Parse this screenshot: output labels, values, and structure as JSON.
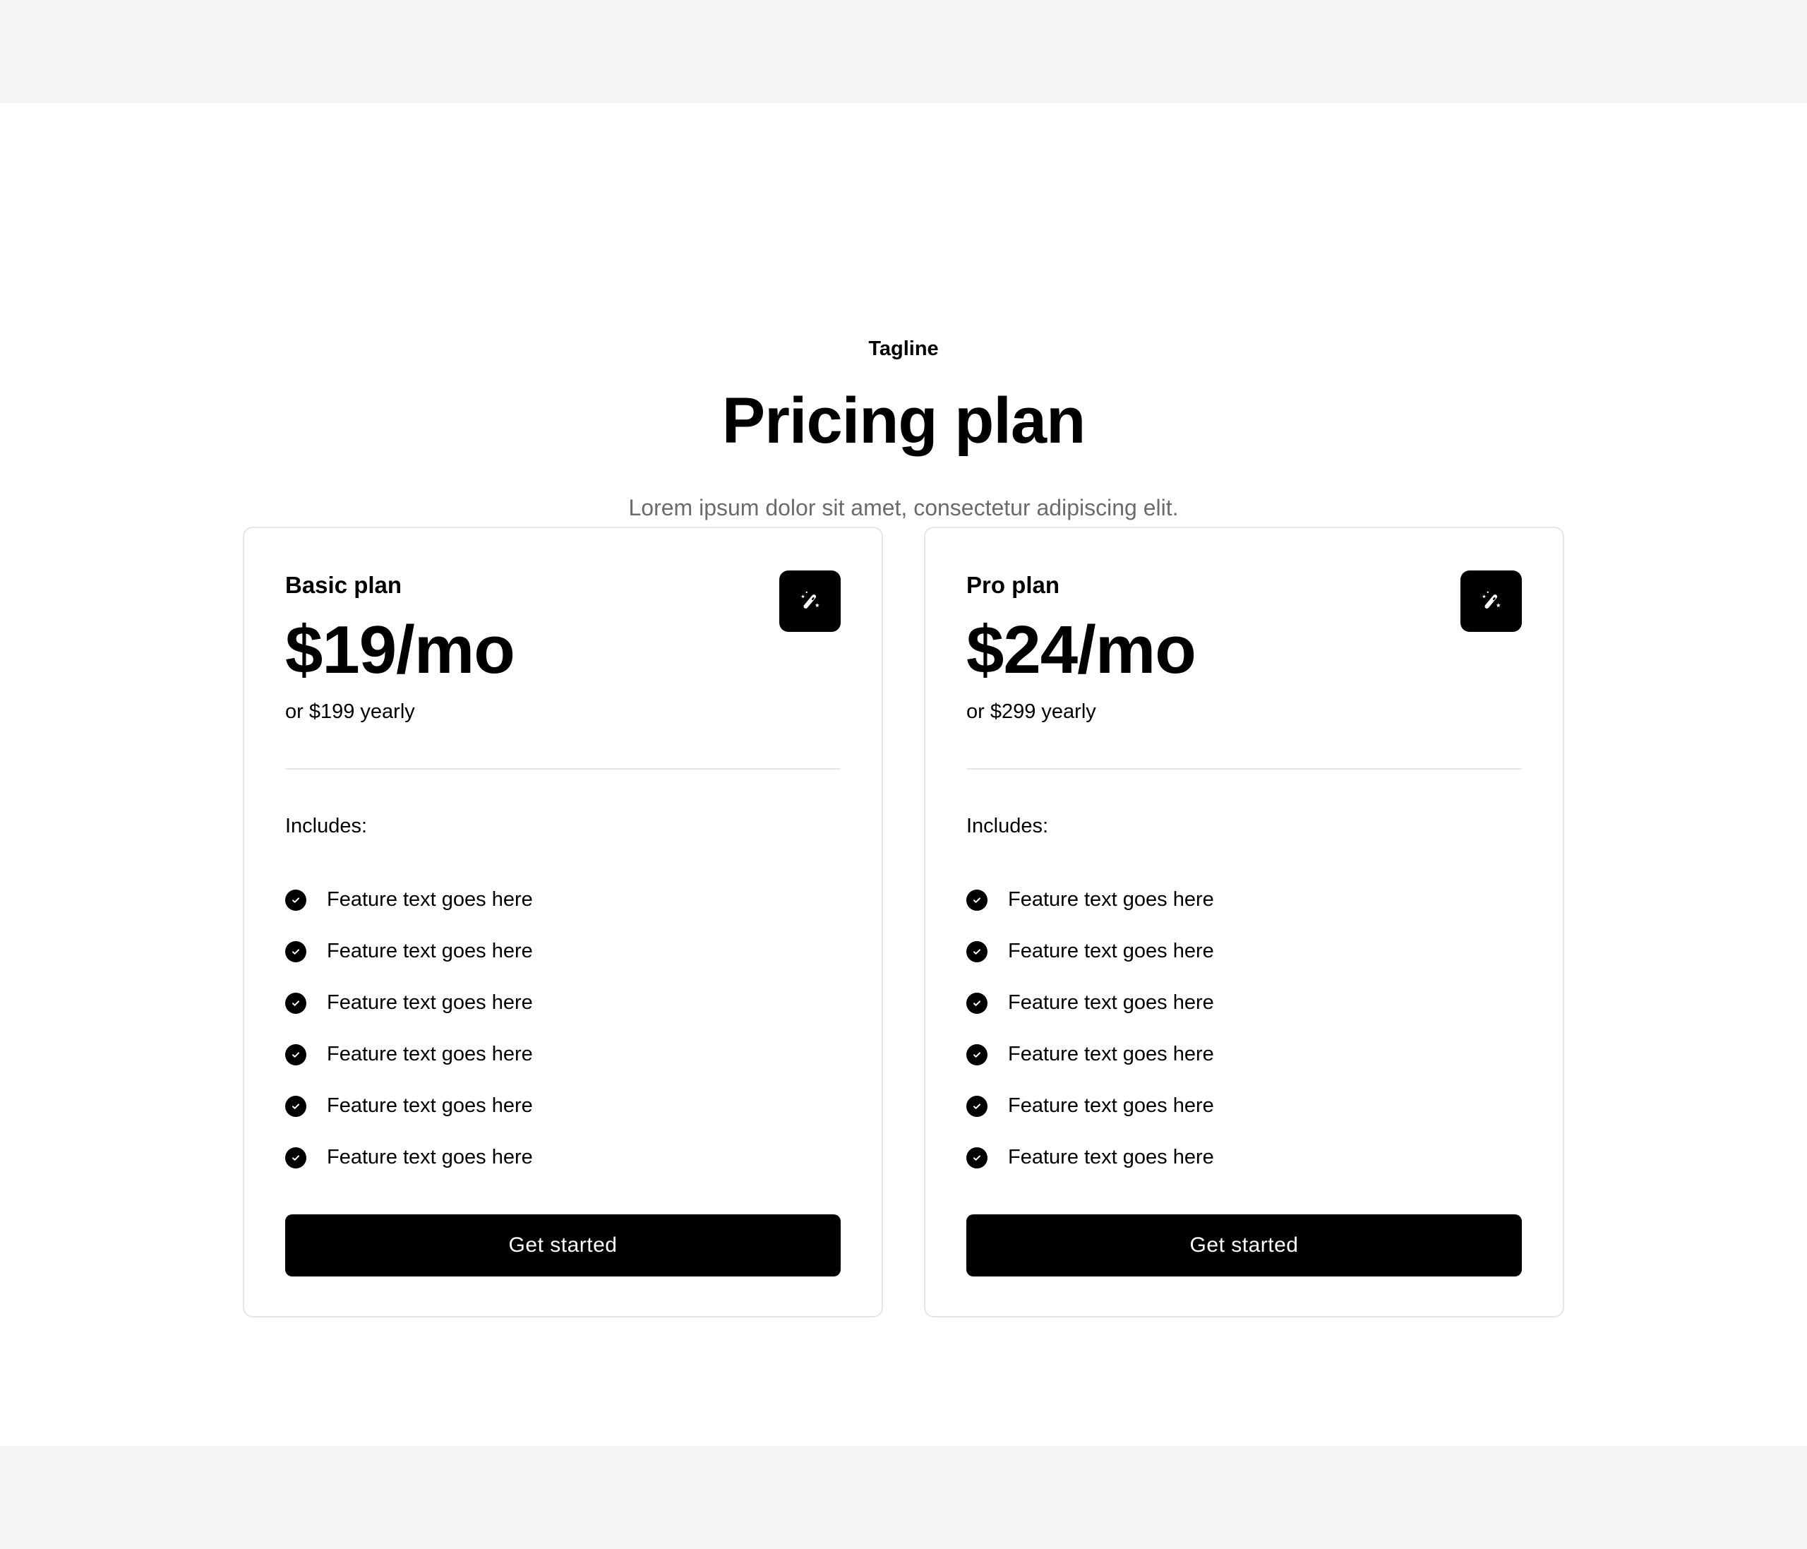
{
  "header": {
    "tagline": "Tagline",
    "title": "Pricing plan",
    "subtitle": "Lorem ipsum dolor sit amet, consectetur adipiscing elit."
  },
  "plans": [
    {
      "name": "Basic plan",
      "price": "$19/mo",
      "yearly": "or $199 yearly",
      "icon": "magic-wand-icon",
      "includes_label": "Includes:",
      "features": [
        "Feature text goes here",
        "Feature text goes here",
        "Feature text goes here",
        "Feature text goes here",
        "Feature text goes here",
        "Feature text goes here"
      ],
      "cta": "Get started"
    },
    {
      "name": "Pro plan",
      "price": "$24/mo",
      "yearly": "or $299 yearly",
      "icon": "magic-wand-icon",
      "includes_label": "Includes:",
      "features": [
        "Feature text goes here",
        "Feature text goes here",
        "Feature text goes here",
        "Feature text goes here",
        "Feature text goes here",
        "Feature text goes here"
      ],
      "cta": "Get started"
    }
  ],
  "colors": {
    "background": "#f5f5f5",
    "accent": "#000000",
    "muted_text": "#6b6b6b",
    "border": "#e6e6e6"
  }
}
